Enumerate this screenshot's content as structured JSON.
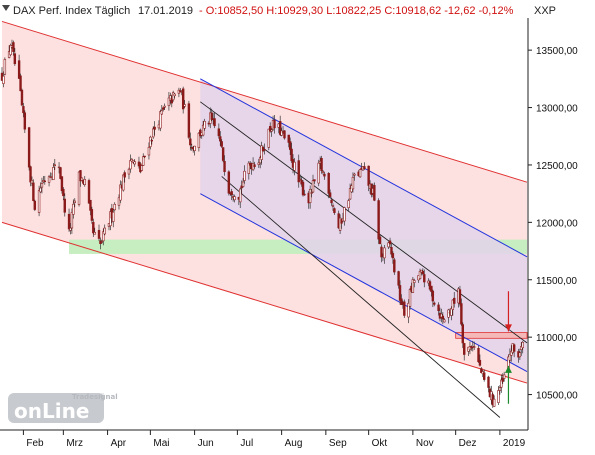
{
  "header": {
    "instrument": "DAX Perf. Index Täglich",
    "date": "17.01.2019",
    "ohlc": "- O:10852,50 H:10929,30 L:10822,25 C:10918,62 -12,62 -0,12%",
    "currency": "XXP"
  },
  "colors": {
    "candle_body": "#8b1a1a",
    "wick": "#333333",
    "outer_channel_fill": "#fde0e0",
    "outer_channel_line": "#e03030",
    "inner_channel_fill": "#e3d3ea",
    "inner_channel_line": "#2233dd",
    "support_zone": "#c6eec0",
    "resistance_zone": "#f5b8b8",
    "trendline": "#222222",
    "arrow_down": "#d42020",
    "arrow_up": "#1a8a2a"
  },
  "logo": {
    "brand_top": "Tradesignal",
    "brand_main": "onLine",
    "registered": "®"
  },
  "chart_data": {
    "type": "candlestick",
    "title": "DAX Perf. Index Täglich",
    "y_tick_labels": [
      "13500,00",
      "13000,00",
      "12500,00",
      "12000,00",
      "11500,00",
      "11000,00",
      "10500,00"
    ],
    "y_ticks": [
      13500,
      13000,
      12500,
      12000,
      11500,
      11000,
      10500
    ],
    "x_tick_labels": [
      "Feb",
      "Mrz",
      "Apr",
      "Mai",
      "Jun",
      "Jul",
      "Aug",
      "Sep",
      "Okt",
      "Nov",
      "Dez",
      "2019"
    ],
    "x_ticks": [
      "2018-02-01",
      "2018-03-01",
      "2018-04-01",
      "2018-05-01",
      "2018-06-01",
      "2018-07-01",
      "2018-08-01",
      "2018-09-01",
      "2018-10-01",
      "2018-11-01",
      "2018-12-01",
      "2019-01-01"
    ],
    "x_range": [
      "2018-01-17",
      "2019-01-20"
    ],
    "ylim": [
      10200,
      13780
    ],
    "close_path": [
      [
        "2018-01-17",
        13280
      ],
      [
        "2018-01-23",
        13560
      ],
      [
        "2018-01-29",
        13200
      ],
      [
        "2018-02-02",
        12800
      ],
      [
        "2018-02-06",
        12400
      ],
      [
        "2018-02-09",
        12150
      ],
      [
        "2018-02-14",
        12350
      ],
      [
        "2018-02-21",
        12450
      ],
      [
        "2018-02-26",
        12500
      ],
      [
        "2018-03-01",
        12200
      ],
      [
        "2018-03-05",
        11900
      ],
      [
        "2018-03-12",
        12400
      ],
      [
        "2018-03-16",
        12350
      ],
      [
        "2018-03-22",
        11900
      ],
      [
        "2018-03-27",
        11800
      ],
      [
        "2018-04-03",
        12050
      ],
      [
        "2018-04-10",
        12300
      ],
      [
        "2018-04-17",
        12550
      ],
      [
        "2018-04-24",
        12450
      ],
      [
        "2018-04-30",
        12700
      ],
      [
        "2018-05-07",
        12900
      ],
      [
        "2018-05-14",
        13050
      ],
      [
        "2018-05-22",
        13150
      ],
      [
        "2018-05-25",
        12980
      ],
      [
        "2018-05-30",
        12650
      ],
      [
        "2018-06-06",
        12800
      ],
      [
        "2018-06-12",
        12900
      ],
      [
        "2018-06-18",
        12750
      ],
      [
        "2018-06-25",
        12300
      ],
      [
        "2018-07-02",
        12250
      ],
      [
        "2018-07-09",
        12500
      ],
      [
        "2018-07-16",
        12550
      ],
      [
        "2018-07-25",
        12850
      ],
      [
        "2018-07-31",
        12800
      ],
      [
        "2018-08-06",
        12650
      ],
      [
        "2018-08-13",
        12350
      ],
      [
        "2018-08-20",
        12200
      ],
      [
        "2018-08-28",
        12500
      ],
      [
        "2018-09-03",
        12300
      ],
      [
        "2018-09-10",
        11950
      ],
      [
        "2018-09-14",
        12100
      ],
      [
        "2018-09-21",
        12400
      ],
      [
        "2018-09-27",
        12450
      ],
      [
        "2018-10-04",
        12250
      ],
      [
        "2018-10-10",
        11700
      ],
      [
        "2018-10-16",
        11800
      ],
      [
        "2018-10-22",
        11400
      ],
      [
        "2018-10-26",
        11200
      ],
      [
        "2018-11-02",
        11500
      ],
      [
        "2018-11-08",
        11550
      ],
      [
        "2018-11-15",
        11350
      ],
      [
        "2018-11-22",
        11150
      ],
      [
        "2018-11-30",
        11300
      ],
      [
        "2018-12-03",
        11450
      ],
      [
        "2018-12-07",
        10850
      ],
      [
        "2018-12-13",
        10950
      ],
      [
        "2018-12-20",
        10650
      ],
      [
        "2018-12-27",
        10450
      ],
      [
        "2019-01-03",
        10600
      ],
      [
        "2019-01-09",
        10900
      ],
      [
        "2019-01-14",
        10850
      ],
      [
        "2019-01-17",
        10918.62
      ]
    ],
    "outer_channel": {
      "upper": [
        [
          "2018-01-17",
          13750
        ],
        [
          "2019-01-20",
          12350
        ]
      ],
      "lower": [
        [
          "2018-01-17",
          12000
        ],
        [
          "2019-01-20",
          10600
        ]
      ]
    },
    "inner_channel": {
      "upper": [
        [
          "2018-06-05",
          13250
        ],
        [
          "2019-01-20",
          11700
        ]
      ],
      "lower": [
        [
          "2018-06-05",
          12250
        ],
        [
          "2019-01-20",
          10700
        ]
      ],
      "fill_end": "2019-01-20"
    },
    "trendlines": [
      [
        [
          "2018-06-05",
          13050
        ],
        [
          "2019-01-20",
          10950
        ]
      ],
      [
        [
          "2018-06-20",
          12400
        ],
        [
          "2019-01-01",
          10300
        ]
      ]
    ],
    "support_zone": {
      "from": "2018-03-05",
      "to": "2019-01-20",
      "y1": 11725,
      "y2": 11850
    },
    "resistance_zone": {
      "from": "2018-12-01",
      "to": "2019-01-20",
      "y1": 10990,
      "y2": 11040
    },
    "arrows": [
      {
        "direction": "down",
        "date": "2019-01-07",
        "y_from": 11400,
        "y_to": 11050
      },
      {
        "direction": "up",
        "date": "2019-01-07",
        "y_from": 10420,
        "y_to": 10750
      }
    ]
  }
}
